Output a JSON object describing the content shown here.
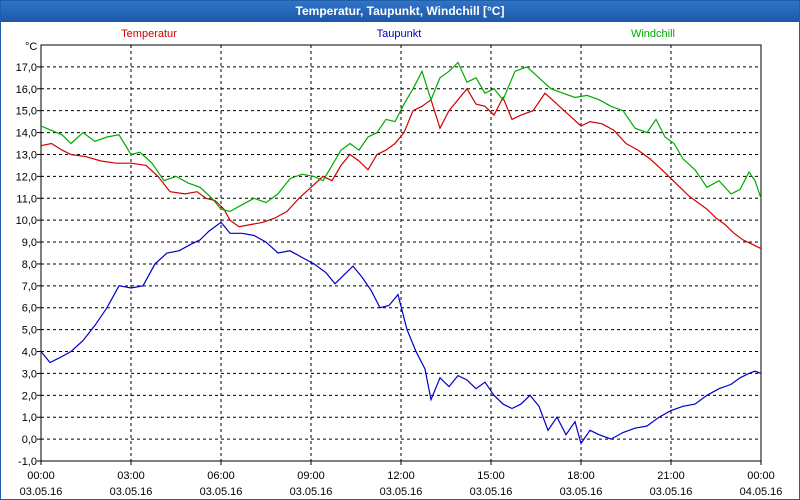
{
  "window": {
    "title": "Temperatur, Taupunkt, Windchill [°C]"
  },
  "colors": {
    "title_bar": "#2566b8",
    "temperatur": "#d00000",
    "taupunkt": "#0000c8",
    "windchill": "#00aa00",
    "grid": "#000000"
  },
  "chart_data": {
    "type": "line",
    "title": "Temperatur, Taupunkt, Windchill [°C]",
    "ylabel": "°C",
    "xlabel": "",
    "ylim": [
      -1,
      18
    ],
    "xlim_hours": [
      0,
      24
    ],
    "grid": true,
    "legend_placement": "top",
    "y_ticks": [
      "-1,0",
      "0,0",
      "1,0",
      "2,0",
      "3,0",
      "4,0",
      "5,0",
      "6,0",
      "7,0",
      "8,0",
      "9,0",
      "10,0",
      "11,0",
      "12,0",
      "13,0",
      "14,0",
      "15,0",
      "16,0",
      "17,0"
    ],
    "x_ticks": [
      {
        "time": "00:00",
        "date": "03.05.16"
      },
      {
        "time": "03:00",
        "date": "03.05.16"
      },
      {
        "time": "06:00",
        "date": "03.05.16"
      },
      {
        "time": "09:00",
        "date": "03.05.16"
      },
      {
        "time": "12:00",
        "date": "03.05.16"
      },
      {
        "time": "15:00",
        "date": "03.05.16"
      },
      {
        "time": "18:00",
        "date": "03.05.16"
      },
      {
        "time": "21:00",
        "date": "03.05.16"
      },
      {
        "time": "00:00",
        "date": "04.05.16"
      }
    ],
    "x_hours": [
      0,
      0.5,
      1,
      1.5,
      2,
      2.5,
      3,
      3.5,
      4,
      4.5,
      5,
      5.5,
      6,
      6.5,
      7,
      7.5,
      8,
      8.5,
      9,
      9.5,
      10,
      10.5,
      11,
      11.5,
      12,
      12.5,
      13,
      13.5,
      14,
      14.5,
      15,
      15.5,
      16,
      16.5,
      17,
      17.5,
      18,
      18.5,
      19,
      19.5,
      20,
      20.5,
      21,
      21.5,
      22,
      22.5,
      23,
      23.5,
      24
    ],
    "series": [
      {
        "name": "Temperatur",
        "color": "#d00000",
        "values": [
          13.4,
          13.5,
          13.2,
          13.0,
          12.9,
          12.7,
          12.6,
          12.6,
          12.5,
          12.0,
          11.3,
          11.2,
          11.3,
          11.0,
          10.9,
          10.5,
          10.0,
          9.7,
          9.8,
          9.9,
          10.1,
          10.4,
          11.0,
          11.5,
          12.0,
          11.8,
          12.5,
          13.0,
          12.7,
          12.3,
          13.0,
          13.2,
          13.5,
          14.0,
          15.0,
          15.2,
          15.5,
          14.2,
          15.0,
          15.5,
          16.0,
          15.3,
          15.2,
          14.8,
          15.6,
          14.6,
          14.8,
          15.0,
          15.8,
          15.3,
          14.8,
          14.3,
          14.5,
          14.4,
          14.1,
          13.5,
          13.2,
          12.8,
          12.3,
          11.9,
          11.5,
          11.1,
          10.8,
          10.5,
          10.1,
          9.8,
          9.4,
          9.1,
          8.9,
          8.7
        ],
        "x_hours": [
          0,
          0.35,
          0.7,
          1,
          1.5,
          2,
          2.5,
          3,
          3.5,
          3.9,
          4.3,
          4.8,
          5.2,
          5.5,
          5.8,
          6.1,
          6.3,
          6.6,
          7,
          7.4,
          7.8,
          8.2,
          8.6,
          9,
          9.4,
          9.7,
          10,
          10.3,
          10.6,
          10.9,
          11.2,
          11.5,
          11.8,
          12.1,
          12.4,
          12.7,
          13.0,
          13.3,
          13.6,
          13.9,
          14.2,
          14.5,
          14.8,
          15.1,
          15.4,
          15.7,
          16.0,
          16.4,
          16.8,
          17.2,
          17.6,
          18.0,
          18.3,
          18.7,
          19.1,
          19.5,
          19.9,
          20.3,
          20.7,
          21.0,
          21.3,
          21.6,
          21.9,
          22.2,
          22.5,
          22.8,
          23.1,
          23.4,
          23.7,
          24
        ]
      },
      {
        "name": "Taupunkt",
        "color": "#0000c8",
        "values": [
          4.0,
          3.5,
          3.7,
          4.0,
          4.5,
          5.2,
          6.0,
          7.0,
          6.9,
          7.0,
          8.0,
          8.5,
          8.6,
          8.9,
          9.1,
          9.5,
          9.9,
          9.4,
          9.4,
          9.3,
          9.0,
          8.5,
          8.6,
          8.3,
          8.0,
          7.6,
          7.1,
          7.5,
          7.9,
          7.4,
          6.8,
          6.0,
          6.1,
          6.6,
          5.0,
          4.0,
          3.2,
          1.8,
          2.8,
          2.4,
          2.9,
          2.7,
          2.3,
          2.6,
          2.0,
          1.6,
          1.4,
          1.6,
          2.0,
          1.5,
          0.4,
          1.0,
          0.2,
          0.8,
          -0.2,
          0.4,
          0.2,
          0.0,
          0.3,
          0.5,
          0.6,
          1.0,
          1.3,
          1.5,
          1.6,
          2.0,
          2.3,
          2.5,
          2.8,
          3.0,
          3.1,
          3.0
        ],
        "x_hours": [
          0,
          0.3,
          0.6,
          1,
          1.4,
          1.8,
          2.2,
          2.6,
          3,
          3.4,
          3.8,
          4.2,
          4.6,
          5,
          5.3,
          5.6,
          6,
          6.3,
          6.7,
          7.1,
          7.5,
          7.9,
          8.3,
          8.7,
          9.1,
          9.5,
          9.8,
          10.1,
          10.4,
          10.7,
          11.0,
          11.3,
          11.6,
          11.9,
          12.2,
          12.5,
          12.8,
          13.0,
          13.3,
          13.6,
          13.9,
          14.2,
          14.5,
          14.8,
          15.1,
          15.4,
          15.7,
          16.0,
          16.3,
          16.6,
          16.9,
          17.2,
          17.5,
          17.8,
          18.0,
          18.3,
          18.6,
          19.0,
          19.4,
          19.8,
          20.2,
          20.6,
          21.0,
          21.4,
          21.8,
          22.2,
          22.6,
          23.0,
          23.3,
          23.6,
          23.8,
          24
        ]
      },
      {
        "name": "Windchill",
        "color": "#00aa00",
        "values": [
          14.3,
          14.1,
          13.9,
          13.5,
          14.0,
          13.6,
          13.8,
          13.9,
          13.0,
          13.1,
          12.6,
          11.8,
          12.0,
          11.7,
          11.5,
          11.0,
          10.5,
          10.4,
          10.7,
          11.0,
          10.8,
          11.2,
          11.9,
          12.1,
          12.0,
          11.8,
          12.5,
          13.2,
          13.5,
          13.2,
          13.8,
          14.0,
          14.6,
          14.5,
          15.3,
          16.0,
          16.8,
          15.5,
          16.5,
          16.8,
          17.2,
          16.3,
          16.5,
          15.8,
          16.0,
          15.5,
          16.8,
          17.0,
          16.5,
          16.0,
          15.8,
          15.6,
          15.7,
          15.5,
          15.2,
          15.0,
          14.2,
          14.0,
          14.6,
          13.8,
          13.5,
          12.8,
          12.3,
          11.5,
          11.8,
          11.2,
          11.4,
          12.2,
          11.8,
          11.0
        ],
        "x_hours": [
          0,
          0.35,
          0.7,
          1,
          1.4,
          1.8,
          2.2,
          2.6,
          3,
          3.3,
          3.7,
          4.1,
          4.5,
          4.9,
          5.3,
          5.7,
          6.0,
          6.3,
          6.7,
          7.1,
          7.5,
          7.9,
          8.3,
          8.7,
          9.1,
          9.4,
          9.7,
          10.0,
          10.3,
          10.6,
          10.9,
          11.2,
          11.5,
          11.8,
          12.1,
          12.4,
          12.7,
          13.0,
          13.3,
          13.6,
          13.9,
          14.2,
          14.5,
          14.8,
          15.1,
          15.4,
          15.8,
          16.2,
          16.6,
          17.0,
          17.4,
          17.8,
          18.2,
          18.6,
          19.0,
          19.4,
          19.8,
          20.2,
          20.5,
          20.8,
          21.1,
          21.4,
          21.8,
          22.2,
          22.6,
          23.0,
          23.3,
          23.6,
          23.8,
          24
        ]
      }
    ]
  }
}
